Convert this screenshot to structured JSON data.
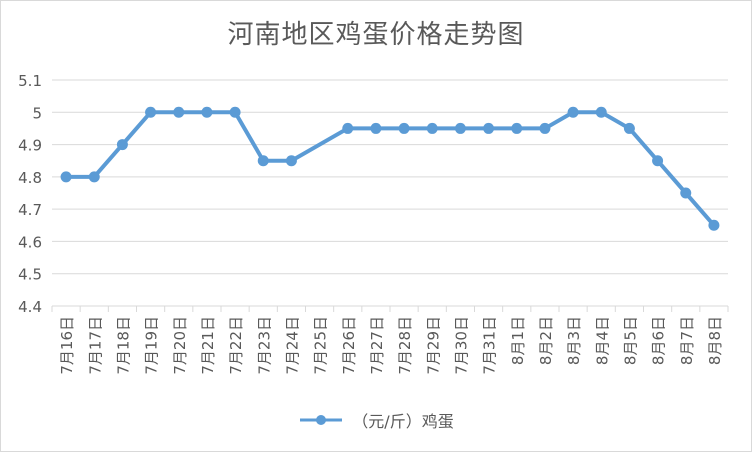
{
  "chart_data": {
    "type": "line",
    "title": "河南地区鸡蛋价格走势图",
    "xlabel": "",
    "ylabel": "",
    "categories": [
      "7月16日",
      "7月17日",
      "7月18日",
      "7月19日",
      "7月20日",
      "7月21日",
      "7月22日",
      "7月23日",
      "7月24日",
      "7月25日",
      "7月26日",
      "7月27日",
      "7月28日",
      "7月29日",
      "7月30日",
      "7月31日",
      "8月1日",
      "8月2日",
      "8月3日",
      "8月4日",
      "8月5日",
      "8月6日",
      "8月7日",
      "8月8日"
    ],
    "series": [
      {
        "name": "（元/斤）鸡蛋",
        "color": "#5b9bd5",
        "values": [
          4.8,
          4.8,
          4.9,
          5.0,
          5.0,
          5.0,
          5.0,
          4.85,
          4.85,
          null,
          4.95,
          4.95,
          4.95,
          4.95,
          4.95,
          4.95,
          4.95,
          4.95,
          5.0,
          5.0,
          4.95,
          4.85,
          4.75,
          4.65
        ]
      }
    ],
    "ylim": [
      4.4,
      5.1
    ],
    "yticks": [
      4.4,
      4.5,
      4.6,
      4.7,
      4.8,
      4.9,
      5.0,
      5.1
    ],
    "ytick_labels": [
      "4.4",
      "4.5",
      "4.6",
      "4.7",
      "4.8",
      "4.9",
      "5",
      "5.1"
    ],
    "grid": true,
    "legend": "bottom",
    "gap_handling": "connect"
  }
}
